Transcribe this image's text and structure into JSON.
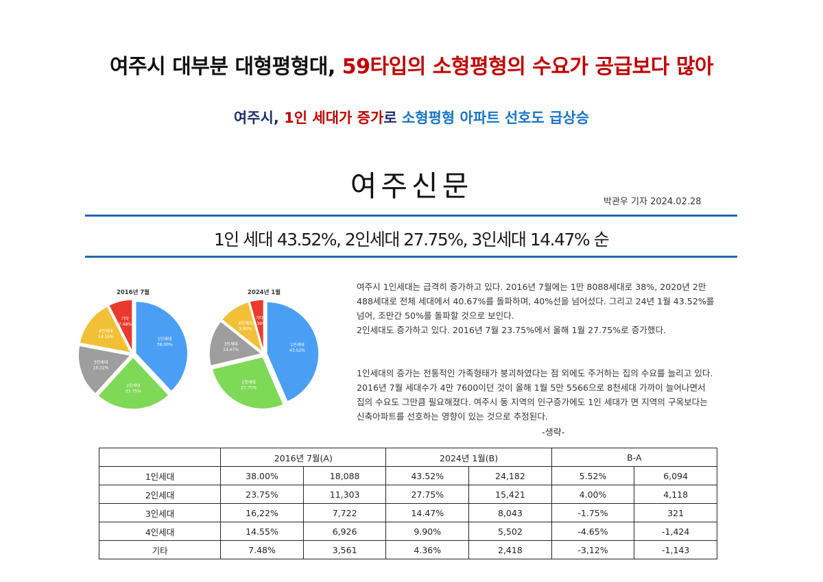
{
  "headline": {
    "black": "여주시 대부분 대형평형대, ",
    "red": "59타입의 소형평형의 수요가 공급보다 많아"
  },
  "subhead": {
    "part1": "여주시, ",
    "part2": "1인 세대가 증가",
    "part3": "로 ",
    "part4": "소형평형 아파트 선호도 급상승"
  },
  "logo": "여주신문",
  "byline": "박관우 기자 2024.02.28",
  "summary": "1인 세대 43.52%, 2인세대 27.75%, 3인세대 14.47% 순",
  "colors": {
    "rule": "#1f66b3",
    "red": "#c00000",
    "navy": "#1f2e6b",
    "blue": "#1a73c4",
    "pie_1": "#4a9ff5",
    "pie_2": "#7ed957",
    "pie_3": "#9e9e9e",
    "pie_4": "#f2c037",
    "pie_etc": "#ea3a2d"
  },
  "chart_data": [
    {
      "type": "pie",
      "title": "2016년 7월",
      "categories": [
        "1인세대",
        "2인세대",
        "3인세대",
        "4인세대",
        "기타"
      ],
      "values": [
        38.0,
        23.75,
        16.22,
        14.55,
        7.48
      ],
      "labels": [
        "38.00%",
        "23.75%",
        "16.22%",
        "14.55%",
        "7.48%"
      ]
    },
    {
      "type": "pie",
      "title": "2024년 1월",
      "categories": [
        "1인세대",
        "2인세대",
        "3인세대",
        "4인세대",
        "기타"
      ],
      "values": [
        43.52,
        27.75,
        14.47,
        9.9,
        4.36
      ],
      "labels": [
        "43.52%",
        "27.75%",
        "14.47%",
        "9.90%",
        "4.36%"
      ]
    }
  ],
  "article": {
    "p1": [
      "여주시 1인세대는 급격히 증가하고 있다. 2016년 7월에는 1만 8088세대로 38%, 2020년 2만",
      "488세대로 전체 세대에서 40.67%를 돌파하며, 40%선을 넘어섰다. 그리고 24년 1월 43.52%를",
      "넘어, 조만간 50%를 돌파할 것으로 보인다.",
      "2인세대도 증가하고 있다. 2016년 7월 23.75%에서 올해 1월 27.75%로 증가했다."
    ],
    "p2": [
      "1인세대의 증가는 전통적인 가족형태가 붕괴하였다는 점 외에도 주거하는 집의 수요를 늘리고 있다.",
      "2016년 7월 세대수가 4만 7600이던 것이 올해 1월 5만 5566으로 8천세대 가까이 늘어나면서",
      "집의 수요도 그만큼 필요해졌다. 여주시 동 지역의 인구증가에도 1인 세대가 면 지역의 구옥보다는",
      "신축아파트를 선호하는 영향이 있는 것으로 추정된다."
    ],
    "ellipsis": "-생략-"
  },
  "table": {
    "headers": [
      "",
      "2016년 7월(A)",
      "2024년 1월(B)",
      "B-A"
    ],
    "rows": [
      [
        "1인세대",
        "38.00%",
        "18,088",
        "43.52%",
        "24,182",
        "5.52%",
        "6,094"
      ],
      [
        "2인세대",
        "23.75%",
        "11,303",
        "27.75%",
        "15,421",
        "4.00%",
        "4,118"
      ],
      [
        "3인세대",
        "16,22%",
        "7,722",
        "14.47%",
        "8,043",
        "-1.75%",
        "321"
      ],
      [
        "4인세대",
        "14.55%",
        "6,926",
        "9.90%",
        "5,502",
        "-4.65%",
        "-1,424"
      ],
      [
        "기타",
        "7.48%",
        "3,561",
        "4.36%",
        "2,418",
        "-3,12%",
        "-1,143"
      ]
    ]
  }
}
